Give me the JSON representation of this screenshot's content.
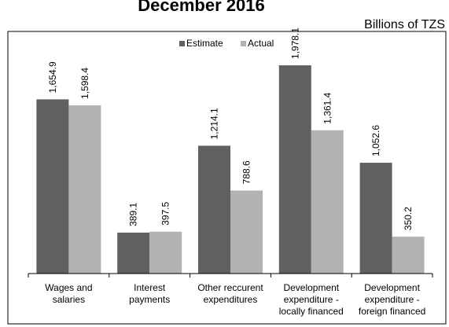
{
  "chart_data": {
    "type": "bar",
    "title": "December 2016",
    "units": "Billions of TZS",
    "categories": [
      [
        "Wages and",
        "salaries"
      ],
      [
        "Interest",
        "payments"
      ],
      [
        "Other reccurent",
        "expenditures"
      ],
      [
        "Development",
        "expenditure -",
        "locally financed"
      ],
      [
        "Development",
        "expenditure -",
        "foreign financed"
      ]
    ],
    "series": [
      {
        "name": "Estimate",
        "color": "#606060",
        "values": [
          1654.9,
          389.1,
          1214.1,
          1978.1,
          1052.6
        ],
        "labels": [
          "1,654.9",
          "389.1",
          "1,214.1",
          "1,978.1",
          "1,052.6"
        ]
      },
      {
        "name": "Actual",
        "color": "#b2b2b2",
        "values": [
          1598.4,
          397.5,
          788.6,
          1361.4,
          350.2
        ],
        "labels": [
          "1,598.4",
          "397.5",
          "788.6",
          "1,361.4",
          "350.2"
        ]
      }
    ],
    "ylim": [
      0,
      2300
    ],
    "legend_position": "top-center",
    "grid": false
  }
}
